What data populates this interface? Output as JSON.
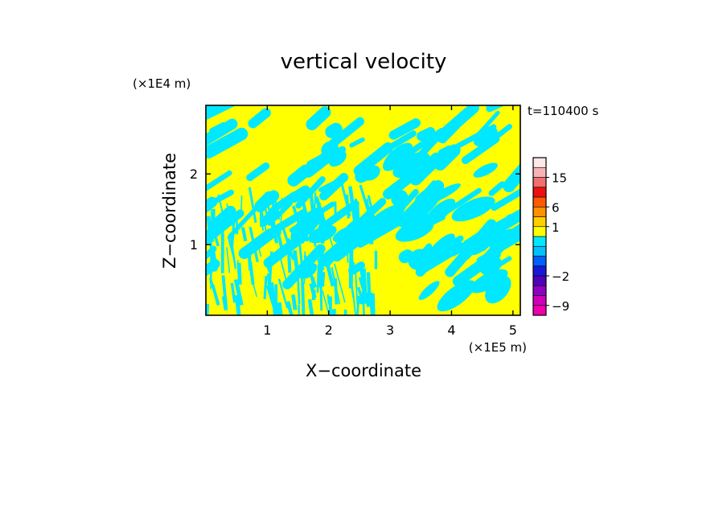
{
  "chart_data": {
    "type": "heatmap",
    "title": "vertical velocity",
    "time_label": "t=110400 s",
    "xlabel": "X−coordinate",
    "ylabel": "Z−coordinate",
    "x_unit": "(×1E5 m)",
    "y_unit": "(×1E4 m)",
    "xlim": [
      0,
      5.12
    ],
    "ylim": [
      0,
      2.97
    ],
    "x_ticks": [
      {
        "value": 1,
        "label": "1"
      },
      {
        "value": 2,
        "label": "2"
      },
      {
        "value": 3,
        "label": "3"
      },
      {
        "value": 4,
        "label": "4"
      },
      {
        "value": 5,
        "label": "5"
      }
    ],
    "y_ticks": [
      {
        "value": 1,
        "label": "1"
      },
      {
        "value": 2,
        "label": "2"
      }
    ],
    "field_colors": {
      "positive": "#ffff00",
      "negative": "#00e8ff"
    },
    "colorbar": {
      "bands": [
        {
          "value": -12,
          "color": "#ee00aa"
        },
        {
          "value": -9,
          "color": "#d000b8"
        },
        {
          "value": -6,
          "color": "#9000c0"
        },
        {
          "value": -4,
          "color": "#5000b8"
        },
        {
          "value": -2,
          "color": "#1818d8"
        },
        {
          "value": -1,
          "color": "#0060ff"
        },
        {
          "value": -0.5,
          "color": "#00c0ff"
        },
        {
          "value": 0,
          "color": "#00e8ff"
        },
        {
          "value": 0.5,
          "color": "#ffff00"
        },
        {
          "value": 1,
          "color": "#ffd000"
        },
        {
          "value": 3,
          "color": "#ff9000"
        },
        {
          "value": 6,
          "color": "#ff5a00"
        },
        {
          "value": 9,
          "color": "#ee1010"
        },
        {
          "value": 12,
          "color": "#f07070"
        },
        {
          "value": 15,
          "color": "#f8b4b4"
        },
        {
          "value": 20,
          "color": "#fbe8e8"
        }
      ],
      "labels": [
        {
          "value": -9,
          "text": "−9"
        },
        {
          "value": -2,
          "text": "−2"
        },
        {
          "value": 1,
          "text": "1"
        },
        {
          "value": 6,
          "text": "6"
        },
        {
          "value": 15,
          "text": "15"
        }
      ]
    }
  }
}
